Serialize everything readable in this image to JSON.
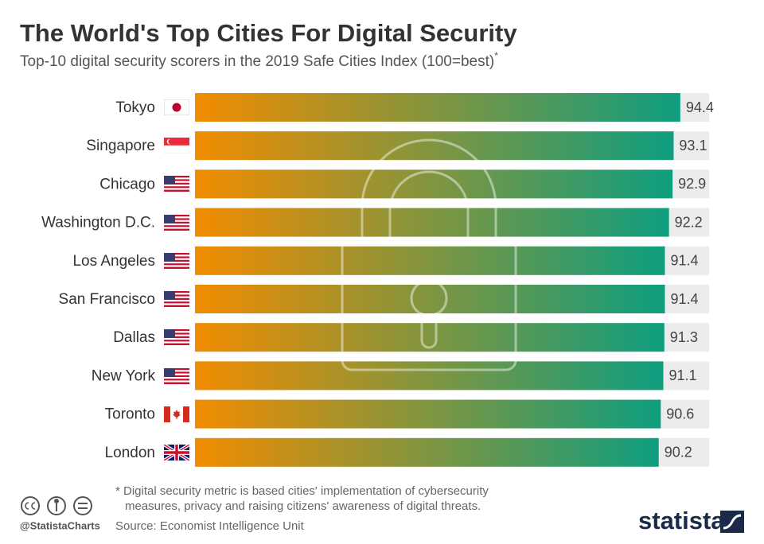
{
  "chart_data": {
    "type": "bar",
    "orientation": "horizontal",
    "title": "The World's Top Cities For Digital Security",
    "subtitle": "Top-10 digital security scorers in the 2019 Safe Cities Index (100=best)",
    "subtitle_mark": "*",
    "categories": [
      "Tokyo",
      "Singapore",
      "Chicago",
      "Washington D.C.",
      "Los Angeles",
      "San Francisco",
      "Dallas",
      "New York",
      "Toronto",
      "London"
    ],
    "values": [
      94.4,
      93.1,
      92.9,
      92.2,
      91.4,
      91.4,
      91.3,
      91.1,
      90.6,
      90.2
    ],
    "xlim": [
      0,
      100
    ],
    "colors": [
      "#f28c00",
      "#0e9e80"
    ],
    "track_color": "#ececec",
    "footnote": [
      "* Digital security metric is based cities' implementation of cybersecurity",
      "measures, privacy and raising citizens' awareness of digital threats."
    ],
    "source": "Source: Economist Intelligence Unit",
    "credit": "@StatistaCharts",
    "brand": "statista"
  }
}
